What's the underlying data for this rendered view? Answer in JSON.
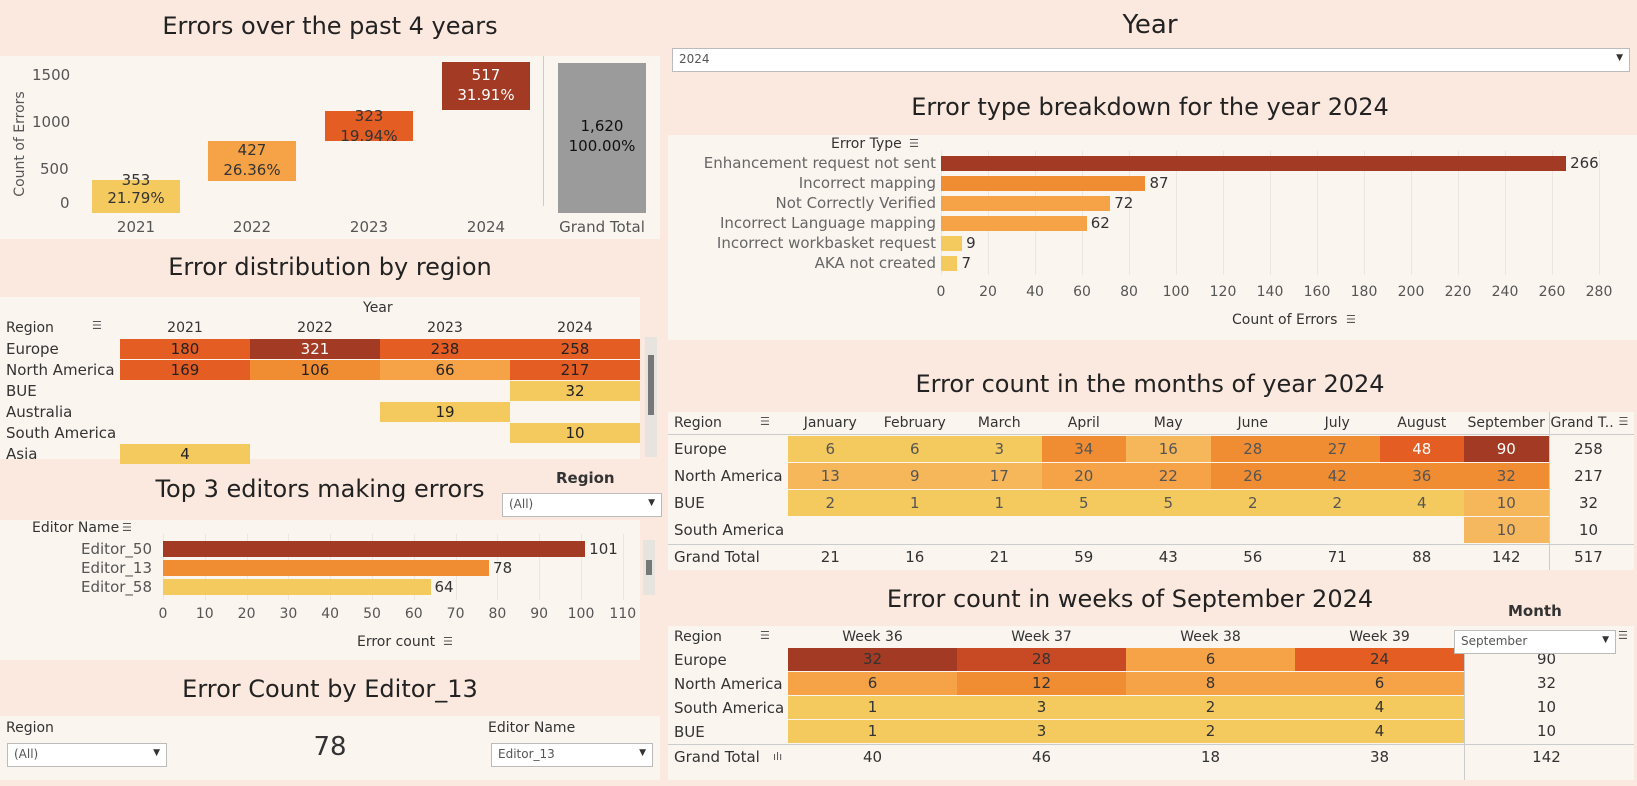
{
  "colors": {
    "c1": "#f4c95d",
    "c2": "#f5a346",
    "c3": "#f08d33",
    "c4": "#e45d23",
    "c5": "#c84a25",
    "c6": "#a33a23",
    "grey": "#9b9b9b"
  },
  "yearly": {
    "title": "Errors over the past 4 years",
    "ylabel": "Count of Errors",
    "yticks": [
      "1500",
      "1000",
      "500",
      "0"
    ],
    "bars": [
      {
        "year": "2021",
        "count": "353",
        "pct": "21.79%"
      },
      {
        "year": "2022",
        "count": "427",
        "pct": "26.36%"
      },
      {
        "year": "2023",
        "count": "323",
        "pct": "19.94%"
      },
      {
        "year": "2024",
        "count": "517",
        "pct": "31.91%"
      }
    ],
    "total": {
      "label": "Grand Total",
      "count": "1,620",
      "pct": "100.00%"
    }
  },
  "region_dist": {
    "title": "Error distribution by region",
    "year_header": "Year",
    "region_header": "Region",
    "years": [
      "2021",
      "2022",
      "2023",
      "2024"
    ],
    "rows": [
      {
        "region": "Europe",
        "vals": [
          "180",
          "321",
          "238",
          "258"
        ]
      },
      {
        "region": "North America",
        "vals": [
          "169",
          "106",
          "66",
          "217"
        ]
      },
      {
        "region": "BUE",
        "vals": [
          "",
          "",
          "",
          "32"
        ]
      },
      {
        "region": "Australia",
        "vals": [
          "",
          "",
          "19",
          ""
        ]
      },
      {
        "region": "South America",
        "vals": [
          "",
          "",
          "",
          "10"
        ]
      },
      {
        "region": "Asia",
        "vals": [
          "4",
          "",
          "",
          ""
        ]
      }
    ]
  },
  "top_editors": {
    "title": "Top 3 editors making errors",
    "header": "Editor Name",
    "xlabel": "Error count",
    "ticks": [
      "0",
      "10",
      "20",
      "30",
      "40",
      "50",
      "60",
      "70",
      "80",
      "90",
      "100",
      "110"
    ],
    "editors": [
      {
        "name": "Editor_50",
        "value": "101"
      },
      {
        "name": "Editor_13",
        "value": "78"
      },
      {
        "name": "Editor_58",
        "value": "64"
      }
    ]
  },
  "region_filter": {
    "label": "Region",
    "value": "(All)"
  },
  "editor_count": {
    "title": "Error Count by Editor_13",
    "region_label": "Region",
    "region_value": "(All)",
    "editor_label": "Editor Name",
    "editor_value": "Editor_13",
    "count": "78"
  },
  "year_filter": {
    "title": "Year",
    "value": "2024"
  },
  "error_types": {
    "title": "Error type breakdown for the year  2024",
    "header": "Error Type",
    "xlabel": "Count of Errors",
    "ticks": [
      "0",
      "20",
      "40",
      "60",
      "80",
      "100",
      "120",
      "140",
      "160",
      "180",
      "200",
      "220",
      "240",
      "260",
      "280"
    ],
    "rows": [
      {
        "name": "Enhancement request not sent",
        "value": "266"
      },
      {
        "name": "Incorrect mapping",
        "value": "87"
      },
      {
        "name": "Not Correctly Verified",
        "value": "72"
      },
      {
        "name": "Incorrect Language mapping",
        "value": "62"
      },
      {
        "name": "Incorrect workbasket request",
        "value": "9"
      },
      {
        "name": "AKA not created",
        "value": "7"
      }
    ]
  },
  "monthly": {
    "title": "Error count in the months of year 2024",
    "region_header": "Region",
    "months": [
      "January",
      "February",
      "March",
      "April",
      "May",
      "June",
      "July",
      "August",
      "September"
    ],
    "grand_header": "Grand T..",
    "rows": [
      {
        "region": "Europe",
        "vals": [
          "6",
          "6",
          "3",
          "34",
          "16",
          "28",
          "27",
          "48",
          "90"
        ],
        "total": "258"
      },
      {
        "region": "North America",
        "vals": [
          "13",
          "9",
          "17",
          "20",
          "22",
          "26",
          "42",
          "36",
          "32"
        ],
        "total": "217"
      },
      {
        "region": "BUE",
        "vals": [
          "2",
          "1",
          "1",
          "5",
          "5",
          "2",
          "2",
          "4",
          "10"
        ],
        "total": "32"
      },
      {
        "region": "South America",
        "vals": [
          "",
          "",
          "",
          "",
          "",
          "",
          "",
          "",
          "10"
        ],
        "total": "10"
      }
    ],
    "grand_row": {
      "label": "Grand Total",
      "vals": [
        "21",
        "16",
        "21",
        "59",
        "43",
        "56",
        "71",
        "88",
        "142"
      ],
      "total": "517"
    }
  },
  "weekly": {
    "title": "Error count in weeks of September  2024",
    "region_header": "Region",
    "weeks": [
      "Week 36",
      "Week 37",
      "Week 38",
      "Week 39"
    ],
    "rows": [
      {
        "region": "Europe",
        "vals": [
          "32",
          "28",
          "6",
          "24"
        ],
        "total": "90"
      },
      {
        "region": "North America",
        "vals": [
          "6",
          "12",
          "8",
          "6"
        ],
        "total": "32"
      },
      {
        "region": "South America",
        "vals": [
          "1",
          "3",
          "2",
          "4"
        ],
        "total": "10"
      },
      {
        "region": "BUE",
        "vals": [
          "1",
          "3",
          "2",
          "4"
        ],
        "total": "10"
      }
    ],
    "grand_row": {
      "label": "Grand Total",
      "vals": [
        "40",
        "46",
        "18",
        "38"
      ],
      "total": "142"
    }
  },
  "month_filter": {
    "label": "Month",
    "value": "September"
  }
}
